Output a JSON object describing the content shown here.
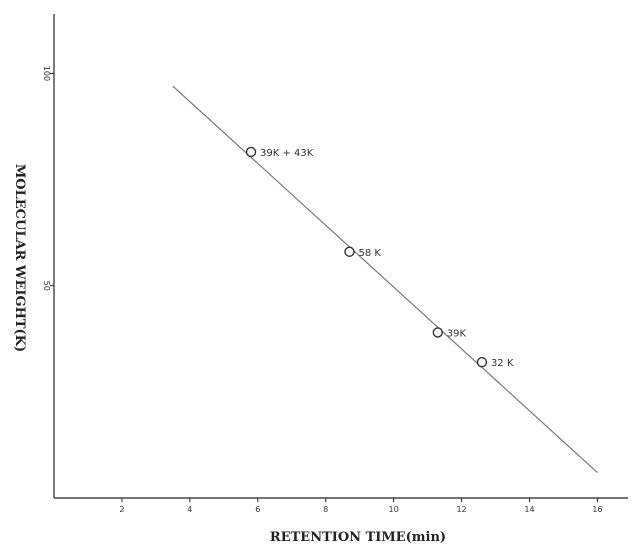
{
  "chart_data": {
    "type": "scatter",
    "title": "",
    "xlabel": "RETENTION TIME(min)",
    "ylabel": "MOLECULAR WEIGHT(K)",
    "xlim": [
      0,
      16.9
    ],
    "ylim": [
      0,
      114
    ],
    "x_ticks": [
      2,
      4,
      6,
      8,
      10,
      12,
      14,
      16
    ],
    "y_ticks": [
      50,
      100
    ],
    "grid": false,
    "points": [
      {
        "x": 5.8,
        "y": 81.5,
        "label": "39K + 43K"
      },
      {
        "x": 8.7,
        "y": 58,
        "label": "58 K"
      },
      {
        "x": 11.3,
        "y": 39,
        "label": "39K"
      },
      {
        "x": 12.6,
        "y": 32,
        "label": "32 K"
      }
    ],
    "fit_line": {
      "x": [
        3.5,
        16.0
      ],
      "y": [
        97,
        6
      ]
    },
    "colors": {
      "line": "#777777",
      "marker": "#333333",
      "axis": "#222222"
    }
  }
}
